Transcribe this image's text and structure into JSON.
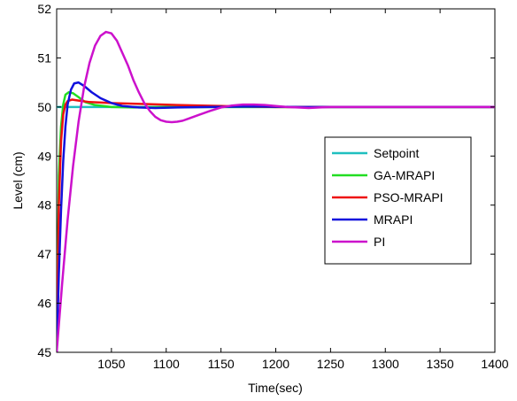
{
  "chart_data": {
    "type": "line",
    "xlabel": "Time(sec)",
    "ylabel": "Level (cm)",
    "xlim": [
      1000,
      1400
    ],
    "ylim": [
      45,
      52
    ],
    "xticks": [
      1050,
      1100,
      1150,
      1200,
      1250,
      1300,
      1350,
      1400
    ],
    "yticks": [
      45,
      46,
      47,
      48,
      49,
      50,
      51,
      52
    ],
    "grid": false,
    "legend": "right",
    "series": [
      {
        "name": "Setpoint",
        "color": "#1fbfbf",
        "x": [
          1000,
          1400
        ],
        "y": [
          50,
          50
        ]
      },
      {
        "name": "GA-MRAPI",
        "color": "#22dd22",
        "x": [
          1000,
          1002,
          1004,
          1006,
          1008,
          1011,
          1015,
          1020,
          1026,
          1035,
          1050,
          1070,
          1100,
          1150,
          1400
        ],
        "y": [
          45,
          48.6,
          49.6,
          50.05,
          50.25,
          50.3,
          50.28,
          50.2,
          50.1,
          50.04,
          50.0,
          49.99,
          50.0,
          50.0,
          50.0
        ]
      },
      {
        "name": "PSO-MRAPI",
        "color": "#ee1111",
        "x": [
          1000,
          1002,
          1004,
          1006,
          1008,
          1010,
          1014,
          1020,
          1030,
          1050,
          1080,
          1110,
          1150,
          1200,
          1400
        ],
        "y": [
          45,
          48.0,
          49.3,
          49.85,
          50.05,
          50.12,
          50.15,
          50.13,
          50.1,
          50.08,
          50.06,
          50.04,
          50.02,
          50.0,
          50.0
        ]
      },
      {
        "name": "MRAPI",
        "color": "#1111dd",
        "x": [
          1000,
          1002,
          1004,
          1006,
          1008,
          1010,
          1013,
          1016,
          1020,
          1025,
          1032,
          1040,
          1050,
          1060,
          1075,
          1090,
          1110,
          1140,
          1180,
          1220,
          1250,
          1400
        ],
        "y": [
          45,
          46.6,
          47.9,
          48.9,
          49.6,
          50.05,
          50.35,
          50.48,
          50.5,
          50.43,
          50.3,
          50.18,
          50.08,
          50.02,
          49.99,
          49.98,
          49.99,
          50.0,
          50.01,
          50.0,
          50.0,
          50.0
        ]
      },
      {
        "name": "PI",
        "color": "#cc11cc",
        "x": [
          1000,
          1005,
          1010,
          1015,
          1020,
          1025,
          1030,
          1035,
          1040,
          1045,
          1050,
          1055,
          1060,
          1065,
          1070,
          1075,
          1080,
          1085,
          1090,
          1095,
          1100,
          1105,
          1110,
          1115,
          1120,
          1130,
          1140,
          1150,
          1160,
          1170,
          1180,
          1190,
          1200,
          1210,
          1220,
          1230,
          1240,
          1250,
          1400
        ],
        "y": [
          45,
          46.4,
          47.7,
          48.8,
          49.7,
          50.4,
          50.9,
          51.25,
          51.45,
          51.53,
          51.5,
          51.35,
          51.1,
          50.85,
          50.55,
          50.3,
          50.08,
          49.92,
          49.8,
          49.73,
          49.7,
          49.69,
          49.7,
          49.72,
          49.76,
          49.84,
          49.92,
          49.99,
          50.03,
          50.05,
          50.05,
          50.04,
          50.02,
          50.0,
          49.99,
          49.98,
          49.99,
          50.0,
          50.0
        ]
      }
    ]
  }
}
